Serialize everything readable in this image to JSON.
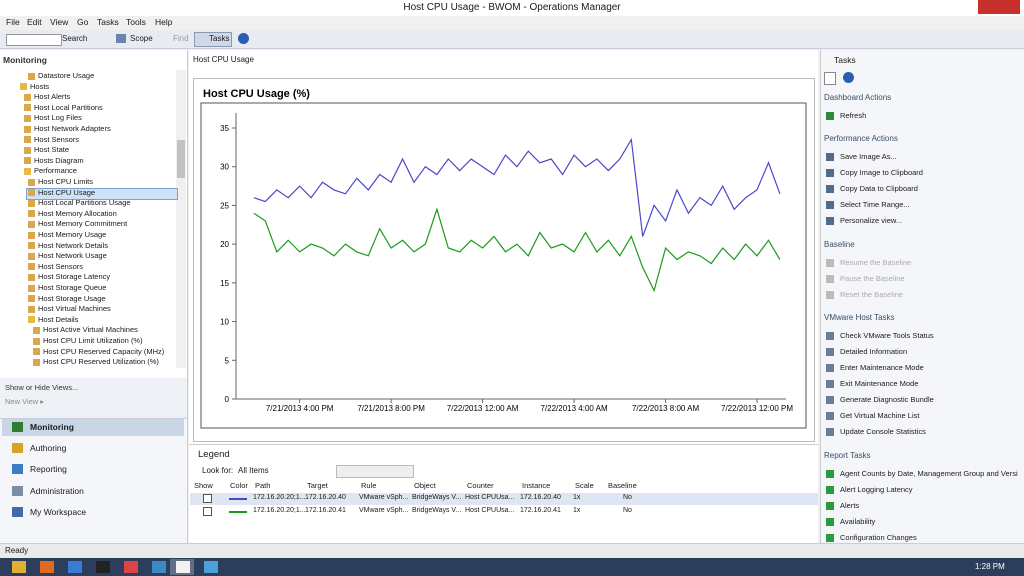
{
  "window": {
    "title": "Host CPU Usage - BWOM - Operations Manager"
  },
  "menu": [
    "File",
    "Edit",
    "View",
    "Go",
    "Tasks",
    "Tools",
    "Help"
  ],
  "toolbar": {
    "search": "Search",
    "scope": "Scope",
    "find": "Find",
    "tasks": "Tasks"
  },
  "navigation": {
    "header": "Monitoring",
    "tree": [
      "Datastore Usage",
      "Hosts",
      "Host Alerts",
      "Host Local Partitions",
      "Host Log Files",
      "Host Network Adapters",
      "Host Sensors",
      "Host State",
      "Hosts Diagram",
      "Performance",
      "Host CPU Limits",
      "Host CPU Usage",
      "Host Local Partitions Usage",
      "Host Memory Allocation",
      "Host Memory Commitment",
      "Host Memory Usage",
      "Host Network Details",
      "Host Network Usage",
      "Host Sensors",
      "Host Storage Latency",
      "Host Storage Queue",
      "Host Storage Usage",
      "Host Virtual Machines",
      "Host Details",
      "Host Active Virtual Machines",
      "Host CPU Limit Utilization (%)",
      "Host CPU Reserved Capacity (MHz)",
      "Host CPU Reserved Utilization (%)"
    ],
    "show_hide_views": "Show or Hide Views...",
    "new_view": "New View ▸",
    "wunderbar": [
      "Monitoring",
      "Authoring",
      "Reporting",
      "Administration",
      "My Workspace"
    ]
  },
  "status": "Ready",
  "view_header": "Host CPU Usage",
  "chart_data": {
    "type": "line",
    "title": "Host CPU Usage (%)",
    "x": [
      "2013-07-21T14:00",
      "2013-07-21T14:30",
      "2013-07-21T15:00",
      "2013-07-21T15:30",
      "2013-07-21T16:00",
      "2013-07-21T16:30",
      "2013-07-21T17:00",
      "2013-07-21T17:30",
      "2013-07-21T18:00",
      "2013-07-21T18:30",
      "2013-07-21T19:00",
      "2013-07-21T19:30",
      "2013-07-21T20:00",
      "2013-07-21T20:30",
      "2013-07-21T21:00",
      "2013-07-21T21:30",
      "2013-07-21T22:00",
      "2013-07-21T22:30",
      "2013-07-21T23:00",
      "2013-07-21T23:30",
      "2013-07-22T00:00",
      "2013-07-22T00:30",
      "2013-07-22T01:00",
      "2013-07-22T01:30",
      "2013-07-22T02:00",
      "2013-07-22T02:30",
      "2013-07-22T03:00",
      "2013-07-22T03:30",
      "2013-07-22T04:00",
      "2013-07-22T04:30",
      "2013-07-22T05:00",
      "2013-07-22T05:30",
      "2013-07-22T06:00",
      "2013-07-22T06:30",
      "2013-07-22T07:00",
      "2013-07-22T07:30",
      "2013-07-22T08:00",
      "2013-07-22T08:30",
      "2013-07-22T09:00",
      "2013-07-22T09:30",
      "2013-07-22T10:00",
      "2013-07-22T10:30",
      "2013-07-22T11:00",
      "2013-07-22T11:30",
      "2013-07-22T12:00",
      "2013-07-22T12:30",
      "2013-07-22T13:00"
    ],
    "series": [
      {
        "color": "#4b48c8",
        "values": [
          26,
          25.5,
          27,
          26,
          27.5,
          26,
          28,
          27,
          26.5,
          28.5,
          27,
          29,
          28,
          31,
          28,
          30,
          29,
          31,
          29.5,
          31,
          30,
          29,
          31.5,
          30,
          32,
          30.5,
          31,
          29,
          31.5,
          30,
          31,
          29.5,
          31,
          33.5,
          21,
          25,
          23,
          27,
          24,
          26,
          25,
          27.5,
          24.5,
          26,
          27,
          30.5,
          26.5
        ]
      },
      {
        "color": "#1a9a1a",
        "values": [
          24,
          23,
          19,
          20.5,
          19,
          20,
          19.5,
          18.5,
          20,
          19,
          18.5,
          22,
          19.5,
          20.5,
          19,
          20,
          24.5,
          19.5,
          19,
          20.5,
          19.5,
          21,
          19,
          20,
          18.5,
          21.5,
          19.5,
          20,
          19,
          21.5,
          19,
          20.5,
          18.5,
          21,
          17,
          14,
          19.5,
          18,
          19,
          18.5,
          17.5,
          19.5,
          18,
          20,
          18.5,
          20.5,
          18
        ]
      }
    ],
    "xlim": [
      "2013-07-21T13:13",
      "2013-07-22T13:16"
    ],
    "xticks": [
      {
        "value": "2013-07-21T16:00",
        "label": "7/21/2013 4:00 PM"
      },
      {
        "value": "2013-07-21T20:00",
        "label": "7/21/2013 8:00 PM"
      },
      {
        "value": "2013-07-22T00:00",
        "label": "7/22/2013 12:00 AM"
      },
      {
        "value": "2013-07-22T04:00",
        "label": "7/22/2013 4:00 AM"
      },
      {
        "value": "2013-07-22T08:00",
        "label": "7/22/2013 8:00 AM"
      },
      {
        "value": "2013-07-22T12:00",
        "label": "7/22/2013 12:00 PM"
      }
    ],
    "ylim": [
      0,
      35
    ],
    "yticks": [
      0,
      5,
      10,
      15,
      20,
      25,
      30,
      35
    ]
  },
  "legend": {
    "title": "Legend",
    "look_for": "Look for:",
    "filter": "All Items",
    "columns": [
      "Show",
      "Color",
      "Path",
      "Target",
      "Rule",
      "Object",
      "Counter",
      "Instance",
      "Scale",
      "Baseline"
    ],
    "rows": [
      [
        "172.16.20.20;1...",
        "172.16.20.40",
        "VMware vSph...",
        "BridgeWays V...",
        "Host CPUUsa...",
        "172.16.20.40",
        "1x",
        "No"
      ],
      [
        "172.16.20.20;1...",
        "172.16.20.41",
        "VMware vSph...",
        "BridgeWays V...",
        "Host CPUUsa...",
        "172.16.20.41",
        "1x",
        "No"
      ]
    ]
  },
  "tasks": {
    "title": "Tasks",
    "sections": [
      {
        "title": "Dashboard Actions",
        "items": [
          "Refresh"
        ]
      },
      {
        "title": "Performance Actions",
        "items": [
          "Save Image As...",
          "Copy Image to Clipboard",
          "Copy Data to Clipboard",
          "Select Time Range...",
          "Personalize view..."
        ]
      },
      {
        "title": "Baseline",
        "items": [
          "Resume the Baseline",
          "Pause the Baseline",
          "Reset the Baseline"
        ]
      },
      {
        "title": "VMware Host Tasks",
        "items": [
          "Check VMware Tools Status",
          "Detailed Information",
          "Enter Maintenance Mode",
          "Exit Maintenance Mode",
          "Generate Diagnostic Bundle",
          "Get Virtual Machine List",
          "Update Console Statistics"
        ]
      },
      {
        "title": "Report Tasks",
        "items": [
          "Agent Counts by Date, Management Group and Versi",
          "Alert Logging Latency",
          "Alerts",
          "Availability",
          "Configuration Changes"
        ]
      }
    ]
  },
  "taskbar": {
    "time": "1:28 PM"
  }
}
